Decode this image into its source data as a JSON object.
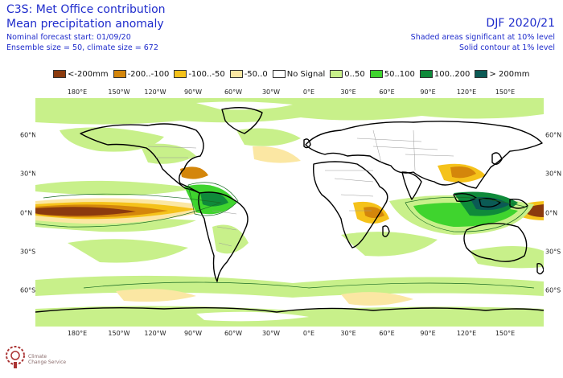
{
  "header": {
    "title_line1": "C3S: Met Office contribution",
    "title_line2": "Mean precipitation anomaly",
    "line3": "Nominal forecast start: 01/09/20",
    "line4": "Ensemble size = 50, climate size = 672",
    "season": "DJF 2020/21",
    "sig_note": "Shaded areas significant at 10% level",
    "contour_note": "Solid contour at 1% level"
  },
  "legend": [
    {
      "label": "<-200mm",
      "color": "#8b3a0e"
    },
    {
      "label": "-200..-100",
      "color": "#d4860b"
    },
    {
      "label": "-100..-50",
      "color": "#f5c21a"
    },
    {
      "label": "-50..0",
      "color": "#fbe7a3"
    },
    {
      "label": "No Signal",
      "color": "#ffffff"
    },
    {
      "label": "0..50",
      "color": "#c8f08a"
    },
    {
      "label": "50..100",
      "color": "#3fd42e"
    },
    {
      "label": "100..200",
      "color": "#0f8a3a"
    },
    {
      "label": "> 200mm",
      "color": "#0b5a55"
    }
  ],
  "lon_ticks": [
    "180°E",
    "150°W",
    "120°W",
    "90°W",
    "60°W",
    "30°W",
    "0°E",
    "30°E",
    "60°E",
    "90°E",
    "120°E",
    "150°E"
  ],
  "lat_ticks": [
    "60°N",
    "30°N",
    "0°N",
    "30°S",
    "60°S"
  ],
  "logo_text": [
    "Climate",
    "Change Service"
  ],
  "colors": {
    "title": "#1f2ccc",
    "land_outline": "#000000",
    "border": "#999999"
  }
}
